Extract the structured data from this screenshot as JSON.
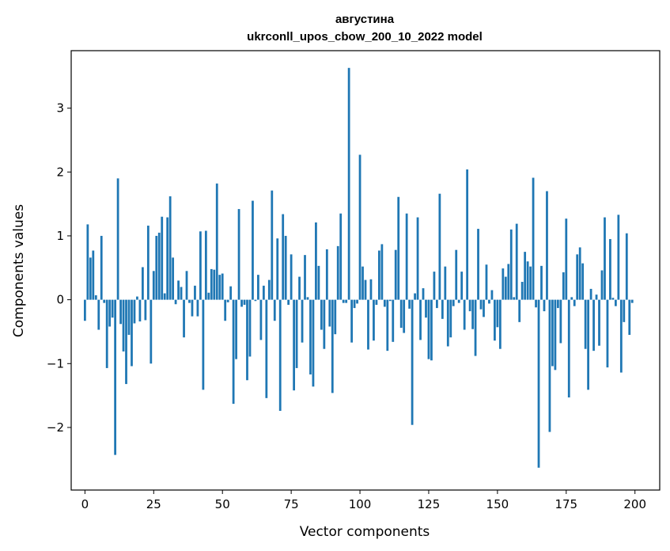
{
  "chart_data": {
    "type": "bar",
    "title": "августина",
    "subtitle": "ukrconll_upos_cbow_200_10_2022 model",
    "xlabel": "Vector components",
    "ylabel": "Components values",
    "xlim": [
      -5,
      209
    ],
    "ylim": [
      -2.98,
      3.9
    ],
    "xticks": [
      0,
      25,
      50,
      75,
      100,
      125,
      150,
      175,
      200
    ],
    "yticks": [
      -2,
      -1,
      0,
      1,
      2,
      3
    ],
    "bar_color": "#1f77b4",
    "grid": false,
    "x": [
      0,
      1,
      2,
      3,
      4,
      5,
      6,
      7,
      8,
      9,
      10,
      11,
      12,
      13,
      14,
      15,
      16,
      17,
      18,
      19,
      20,
      21,
      22,
      23,
      24,
      25,
      26,
      27,
      28,
      29,
      30,
      31,
      32,
      33,
      34,
      35,
      36,
      37,
      38,
      39,
      40,
      41,
      42,
      43,
      44,
      45,
      46,
      47,
      48,
      49,
      50,
      51,
      52,
      53,
      54,
      55,
      56,
      57,
      58,
      59,
      60,
      61,
      62,
      63,
      64,
      65,
      66,
      67,
      68,
      69,
      70,
      71,
      72,
      73,
      74,
      75,
      76,
      77,
      78,
      79,
      80,
      81,
      82,
      83,
      84,
      85,
      86,
      87,
      88,
      89,
      90,
      91,
      92,
      93,
      94,
      95,
      96,
      97,
      98,
      99,
      100,
      101,
      102,
      103,
      104,
      105,
      106,
      107,
      108,
      109,
      110,
      111,
      112,
      113,
      114,
      115,
      116,
      117,
      118,
      119,
      120,
      121,
      122,
      123,
      124,
      125,
      126,
      127,
      128,
      129,
      130,
      131,
      132,
      133,
      134,
      135,
      136,
      137,
      138,
      139,
      140,
      141,
      142,
      143,
      144,
      145,
      146,
      147,
      148,
      149,
      150,
      151,
      152,
      153,
      154,
      155,
      156,
      157,
      158,
      159,
      160,
      161,
      162,
      163,
      164,
      165,
      166,
      167,
      168,
      169,
      170,
      171,
      172,
      173,
      174,
      175,
      176,
      177,
      178,
      179,
      180,
      181,
      182,
      183,
      184,
      185,
      186,
      187,
      188,
      189,
      190,
      191,
      192,
      193,
      194,
      195,
      196,
      197,
      198,
      199
    ],
    "values": [
      -0.33,
      1.18,
      0.66,
      0.77,
      0.07,
      -0.47,
      1.0,
      -0.05,
      -1.07,
      -0.42,
      -0.28,
      -2.43,
      1.9,
      -0.38,
      -0.81,
      -1.32,
      -0.55,
      -1.04,
      -0.37,
      0.05,
      -0.34,
      0.51,
      -0.32,
      1.16,
      -1.0,
      0.45,
      1.0,
      1.05,
      1.3,
      0.1,
      1.29,
      1.62,
      0.66,
      -0.07,
      0.3,
      0.2,
      -0.59,
      0.45,
      -0.05,
      -0.26,
      0.22,
      -0.26,
      1.07,
      -1.41,
      1.08,
      0.11,
      0.48,
      0.47,
      1.82,
      0.39,
      0.41,
      -0.33,
      -0.04,
      0.21,
      -1.63,
      -0.93,
      1.42,
      -0.11,
      -0.08,
      -1.26,
      -0.89,
      1.55,
      -0.02,
      0.39,
      -0.63,
      0.22,
      -1.54,
      0.31,
      1.71,
      -0.33,
      0.96,
      -1.74,
      1.34,
      1.0,
      -0.08,
      0.71,
      -1.42,
      -1.07,
      0.36,
      -0.67,
      0.7,
      0.04,
      -1.17,
      -1.36,
      1.21,
      0.53,
      -0.47,
      -0.77,
      0.79,
      -0.42,
      -1.46,
      -0.54,
      0.84,
      1.35,
      -0.05,
      -0.05,
      3.63,
      -0.67,
      -0.13,
      -0.06,
      2.27,
      0.52,
      0.31,
      -0.78,
      0.32,
      -0.64,
      -0.08,
      0.77,
      0.87,
      -0.11,
      -0.8,
      -0.02,
      -0.66,
      0.78,
      1.61,
      -0.44,
      -0.52,
      1.35,
      -0.14,
      -1.96,
      0.1,
      1.29,
      -0.63,
      0.18,
      -0.28,
      -0.93,
      -0.95,
      0.44,
      -0.13,
      1.66,
      -0.3,
      0.52,
      -0.73,
      -0.59,
      -0.1,
      0.78,
      -0.05,
      0.44,
      -0.47,
      2.04,
      -0.18,
      -0.46,
      -0.88,
      1.11,
      -0.15,
      -0.27,
      0.55,
      -0.06,
      0.15,
      -0.64,
      -0.43,
      -0.77,
      0.49,
      0.36,
      0.56,
      1.1,
      0.04,
      1.19,
      -0.35,
      0.28,
      0.75,
      0.6,
      0.52,
      1.91,
      -0.12,
      -2.63,
      0.53,
      -0.18,
      1.7,
      -2.07,
      -1.04,
      -1.1,
      -0.13,
      -0.68,
      0.43,
      1.27,
      -1.53,
      0.04,
      -0.1,
      0.71,
      0.82,
      0.57,
      -0.77,
      -1.41,
      0.17,
      -0.8,
      0.08,
      -0.72,
      0.46,
      1.29,
      -1.06,
      0.95,
      0.03,
      -0.1,
      1.33,
      -1.14,
      -0.35,
      1.04,
      -0.55,
      -0.05
    ]
  }
}
